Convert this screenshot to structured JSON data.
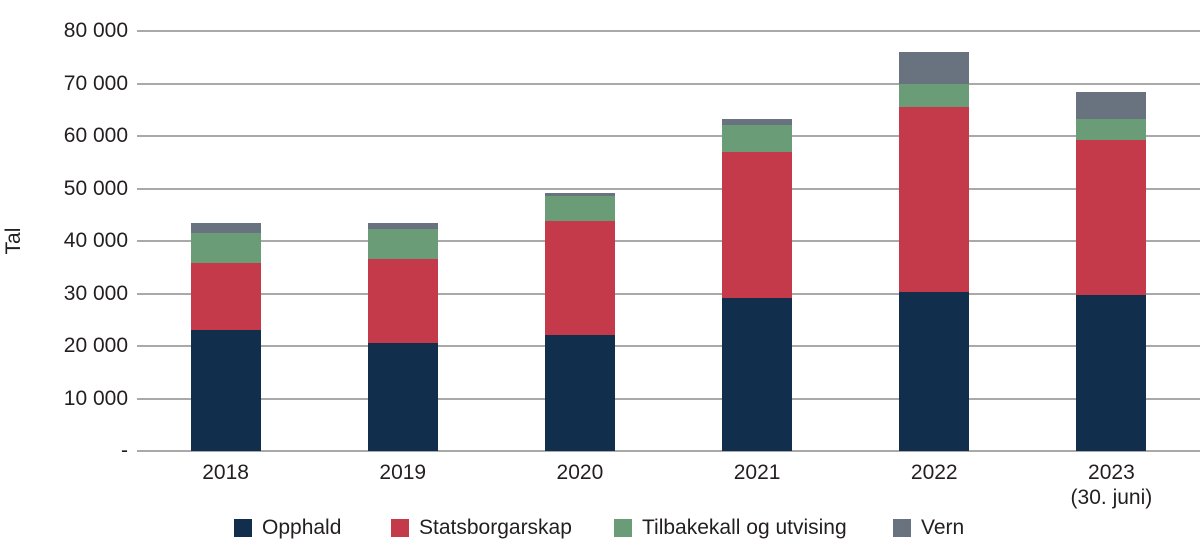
{
  "chart_data": {
    "type": "bar",
    "variant": "stacked",
    "title": "",
    "ylabel": "Tal",
    "xlabel": "",
    "ylim": [
      0,
      80000
    ],
    "grid": "horizontal",
    "legend_position": "bottom",
    "gridline_color": "#a9a9a9",
    "axis_text_color": "#231f20",
    "yticks": [
      {
        "label": "80 000",
        "value": 80000
      },
      {
        "label": "70 000",
        "value": 70000
      },
      {
        "label": "60 000",
        "value": 60000
      },
      {
        "label": "50 000",
        "value": 50000
      },
      {
        "label": "40 000",
        "value": 40000
      },
      {
        "label": "30 000",
        "value": 30000
      },
      {
        "label": "20 000",
        "value": 20000
      },
      {
        "label": "10 000",
        "value": 10000
      },
      {
        "label": "-",
        "value": 0
      }
    ],
    "categories": [
      {
        "label": "2018",
        "sublabel": ""
      },
      {
        "label": "2019",
        "sublabel": ""
      },
      {
        "label": "2020",
        "sublabel": ""
      },
      {
        "label": "2021",
        "sublabel": ""
      },
      {
        "label": "2022",
        "sublabel": ""
      },
      {
        "label": "2023",
        "sublabel": "(30. juni)"
      }
    ],
    "series": [
      {
        "name": "Opphald",
        "color": "#112f4d",
        "values": [
          23100,
          20500,
          22100,
          29200,
          30200,
          29800
        ]
      },
      {
        "name": "Statsborgarskap",
        "color": "#c53a4b",
        "values": [
          12700,
          16000,
          21800,
          27700,
          35300,
          29500
        ]
      },
      {
        "name": "Tilbakekall og utvising",
        "color": "#699c77",
        "values": [
          5700,
          5800,
          4700,
          5200,
          4500,
          3900
        ]
      },
      {
        "name": "Vern",
        "color": "#69737f",
        "values": [
          1900,
          1100,
          600,
          1100,
          6000,
          5100
        ]
      }
    ],
    "totals": [
      43400,
      43400,
      49200,
      63200,
      76000,
      68300
    ]
  }
}
